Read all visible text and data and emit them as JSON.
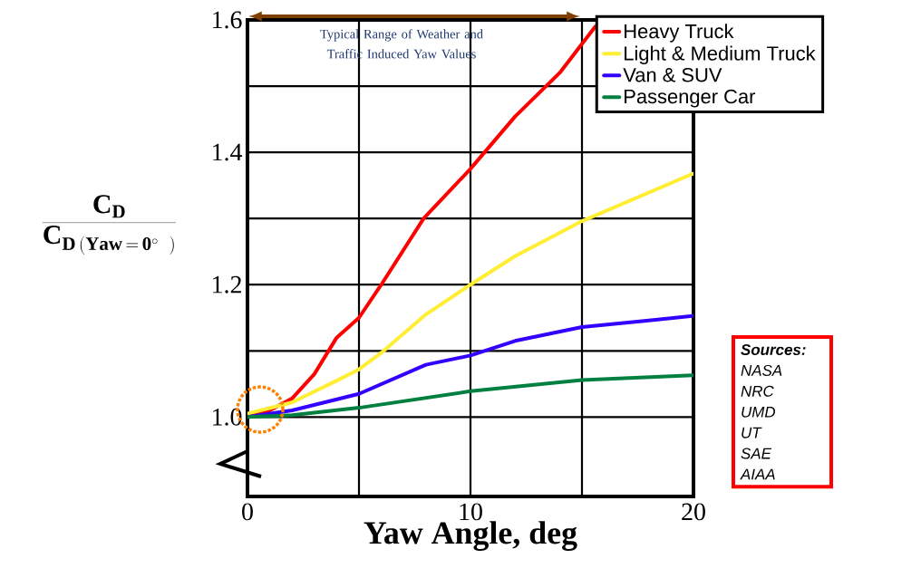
{
  "chart_data": {
    "type": "line",
    "xlabel": "Yaw Angle, deg",
    "ylabel": "\\frac{\\mathbf{C_D}}{\\mathbf{C_{D\\,(Yaw\\,=\\,0^{\\circ}\\;\\;)}}}",
    "xlim": [
      0,
      20
    ],
    "ylim": [
      0.88,
      1.6
    ],
    "xticks": [
      0,
      {
        "value": 5,
        "label": null
      },
      10,
      {
        "value": 15,
        "label": null
      },
      20
    ],
    "yticks": [
      {
        "value": 1.0,
        "label": "1.0"
      },
      {
        "value": 1.1,
        "label": null
      },
      {
        "value": 1.2,
        "label": "1.2"
      },
      {
        "value": 1.3,
        "label": null
      },
      {
        "value": 1.4,
        "label": "1.4"
      },
      {
        "value": 1.5,
        "label": null
      },
      {
        "value": 1.6,
        "label": "1.6"
      }
    ],
    "grid": true,
    "legend": "top right",
    "marker": "none",
    "line_style": "solid",
    "annotations": [
      "Typical Range  of Weather and Traffic Induced Yaw  Values",
      "Sources:",
      "NASA",
      "NRC",
      "UMD",
      "UT",
      "SAE",
      "AIAA"
    ],
    "series": [
      {
        "name": "Heavy Truck",
        "color": "#ff0000",
        "x": [
          0,
          1,
          2,
          3,
          4,
          5,
          6,
          7.9,
          10,
          12,
          14,
          15.6
        ],
        "values": [
          1.003,
          1.01,
          1.028,
          1.065,
          1.12,
          1.15,
          1.2,
          1.3,
          1.375,
          1.454,
          1.52,
          1.59
        ]
      },
      {
        "name": "Light & Medium Truck",
        "color": "#ffee33",
        "x": [
          0,
          2,
          4,
          5,
          6,
          8,
          10,
          12,
          15,
          20
        ],
        "values": [
          1.005,
          1.022,
          1.055,
          1.072,
          1.097,
          1.155,
          1.2,
          1.243,
          1.296,
          1.368
        ]
      },
      {
        "name": "Van & SUV",
        "color": "#3300ff",
        "x": [
          0,
          2,
          5,
          8,
          10,
          12,
          15,
          18,
          20
        ],
        "values": [
          1.0,
          1.01,
          1.035,
          1.079,
          1.093,
          1.115,
          1.136,
          1.146,
          1.153
        ]
      },
      {
        "name": "Passenger Car",
        "color": "#008040",
        "x": [
          0,
          2,
          5,
          10,
          15,
          20
        ],
        "values": [
          1.0,
          1.003,
          1.014,
          1.039,
          1.056,
          1.063
        ]
      }
    ]
  }
}
